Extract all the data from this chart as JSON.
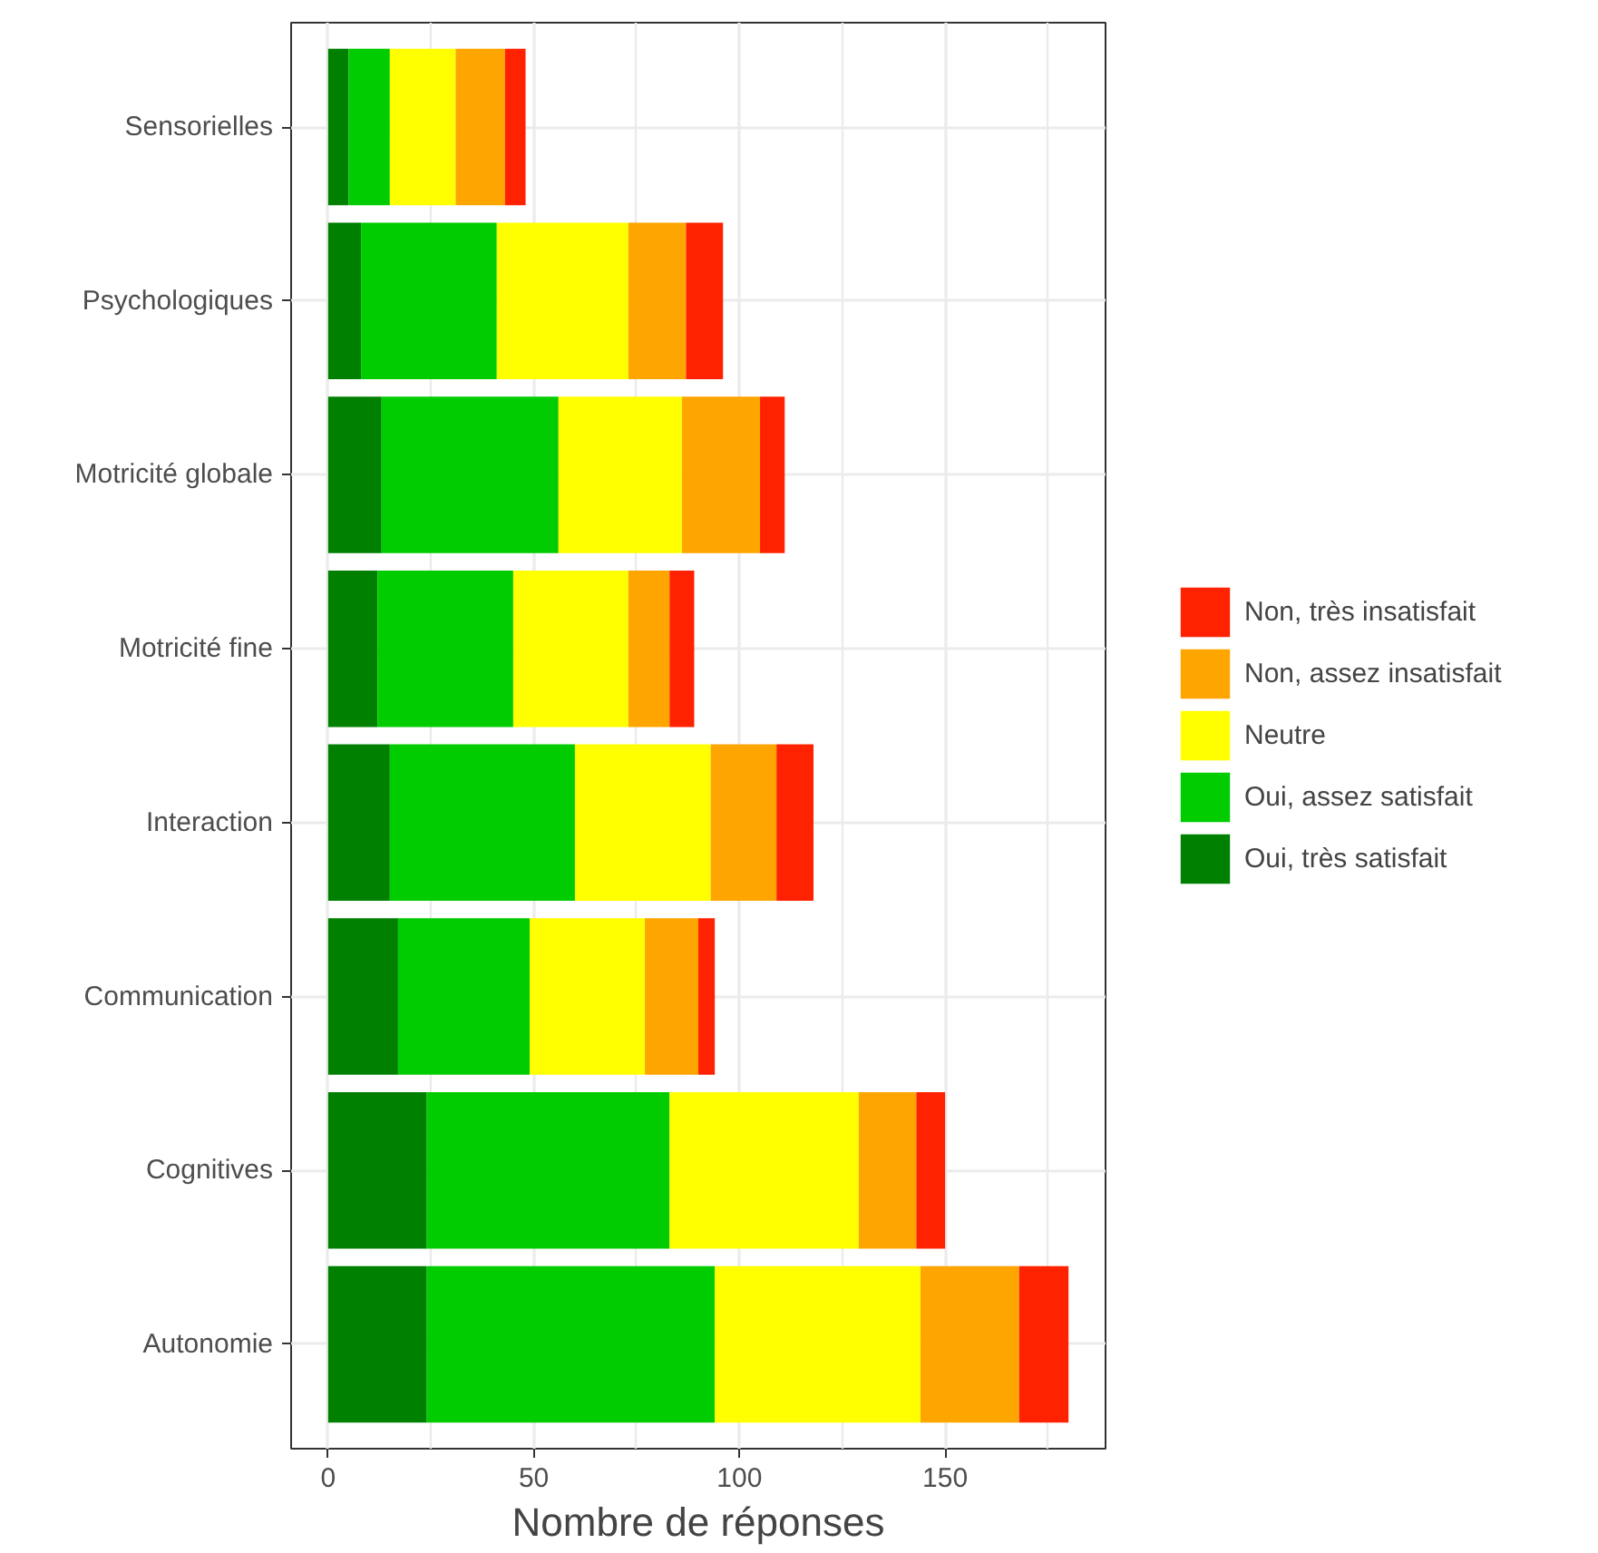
{
  "chart_data": {
    "type": "bar",
    "orientation": "horizontal",
    "stacked": true,
    "xlabel": "Nombre de réponses",
    "categories": [
      "Sensorielles",
      "Psychologiques",
      "Motricité globale",
      "Motricité fine",
      "Interaction",
      "Communication",
      "Cognitives",
      "Autonomie"
    ],
    "series": [
      {
        "name": "Oui, très satisfait",
        "color": "#008000",
        "values": [
          5,
          8,
          13,
          12,
          15,
          17,
          24,
          24
        ]
      },
      {
        "name": "Oui, assez satisfait",
        "color": "#00cc00",
        "values": [
          10,
          33,
          43,
          33,
          45,
          32,
          59,
          70
        ]
      },
      {
        "name": "Neutre",
        "color": "#ffff00",
        "values": [
          16,
          32,
          30,
          28,
          33,
          28,
          46,
          50
        ]
      },
      {
        "name": "Non, assez insatisfait",
        "color": "#ffa500",
        "values": [
          12,
          14,
          19,
          10,
          16,
          13,
          14,
          24
        ]
      },
      {
        "name": "Non, très insatisfait",
        "color": "#ff2200",
        "values": [
          5,
          9,
          6,
          6,
          9,
          4,
          7,
          12
        ]
      }
    ],
    "xlim": [
      -9,
      189
    ],
    "xticks": [
      0,
      50,
      100,
      150
    ],
    "grid": true,
    "legend": "right"
  }
}
